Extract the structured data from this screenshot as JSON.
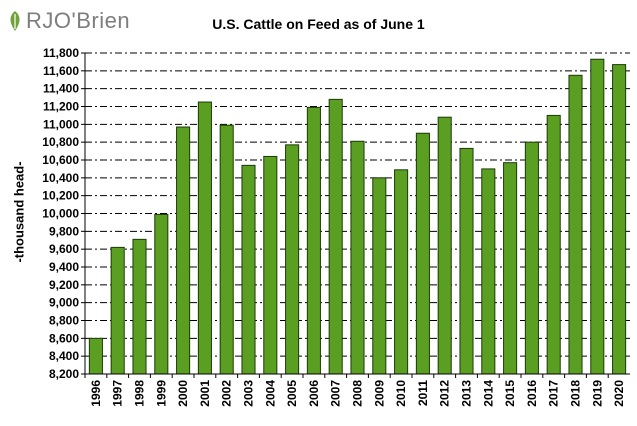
{
  "logo": {
    "text": "RJO'Brien",
    "mark_color": "#6fa33a"
  },
  "chart_data": {
    "type": "bar",
    "title": "U.S. Cattle on Feed as of June 1",
    "xlabel": "",
    "ylabel": "-thousand head-",
    "categories": [
      "1996",
      "1997",
      "1998",
      "1999",
      "2000",
      "2001",
      "2002",
      "2003",
      "2004",
      "2005",
      "2006",
      "2007",
      "2008",
      "2009",
      "2010",
      "2011",
      "2012",
      "2013",
      "2014",
      "2015",
      "2016",
      "2017",
      "2018",
      "2019",
      "2020"
    ],
    "values": [
      8600,
      9620,
      9710,
      9990,
      10970,
      11250,
      10990,
      10540,
      10640,
      10770,
      11190,
      11280,
      10810,
      10400,
      10490,
      10900,
      11080,
      10730,
      10500,
      10570,
      10800,
      11100,
      11550,
      11730,
      11670
    ],
    "ylim": [
      8200,
      11800
    ],
    "yticks": [
      "8,200",
      "8,400",
      "8,600",
      "8,800",
      "9,000",
      "9,200",
      "9,400",
      "9,600",
      "9,800",
      "10,000",
      "10,200",
      "10,400",
      "10,600",
      "10,800",
      "11,000",
      "11,200",
      "11,400",
      "11,600",
      "11,800"
    ],
    "bar_color": "#5a9e22",
    "bar_edge_color": "#1d3a08",
    "grid": true,
    "legend": "none"
  }
}
